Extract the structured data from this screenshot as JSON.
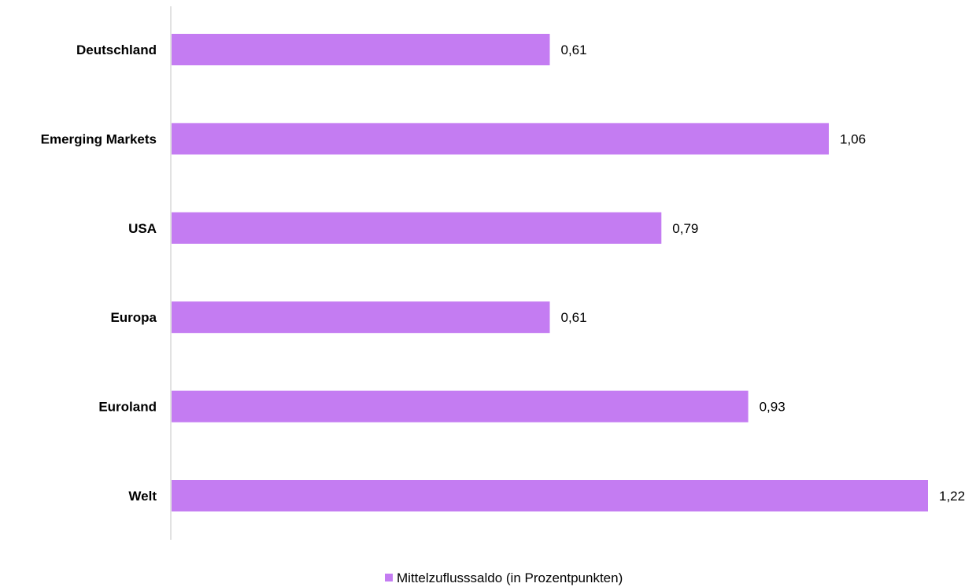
{
  "chart_data": {
    "type": "bar",
    "orientation": "horizontal",
    "categories": [
      "Deutschland",
      "Emerging Markets",
      "USA",
      "Europa",
      "Euroland",
      "Welt"
    ],
    "series": [
      {
        "name": "Mittelzuflusssaldo (in Prozentpunkten)",
        "values": [
          0.61,
          1.06,
          0.79,
          0.61,
          0.93,
          1.22
        ],
        "labels": [
          "0,61",
          "1,06",
          "0,79",
          "0,61",
          "0,93",
          "1,22"
        ],
        "color": "#c47cf2"
      }
    ],
    "title": "",
    "xlabel": "",
    "ylabel": "",
    "xlim": [
      0,
      1.22
    ],
    "grid": false,
    "legend": "bottom-center"
  }
}
